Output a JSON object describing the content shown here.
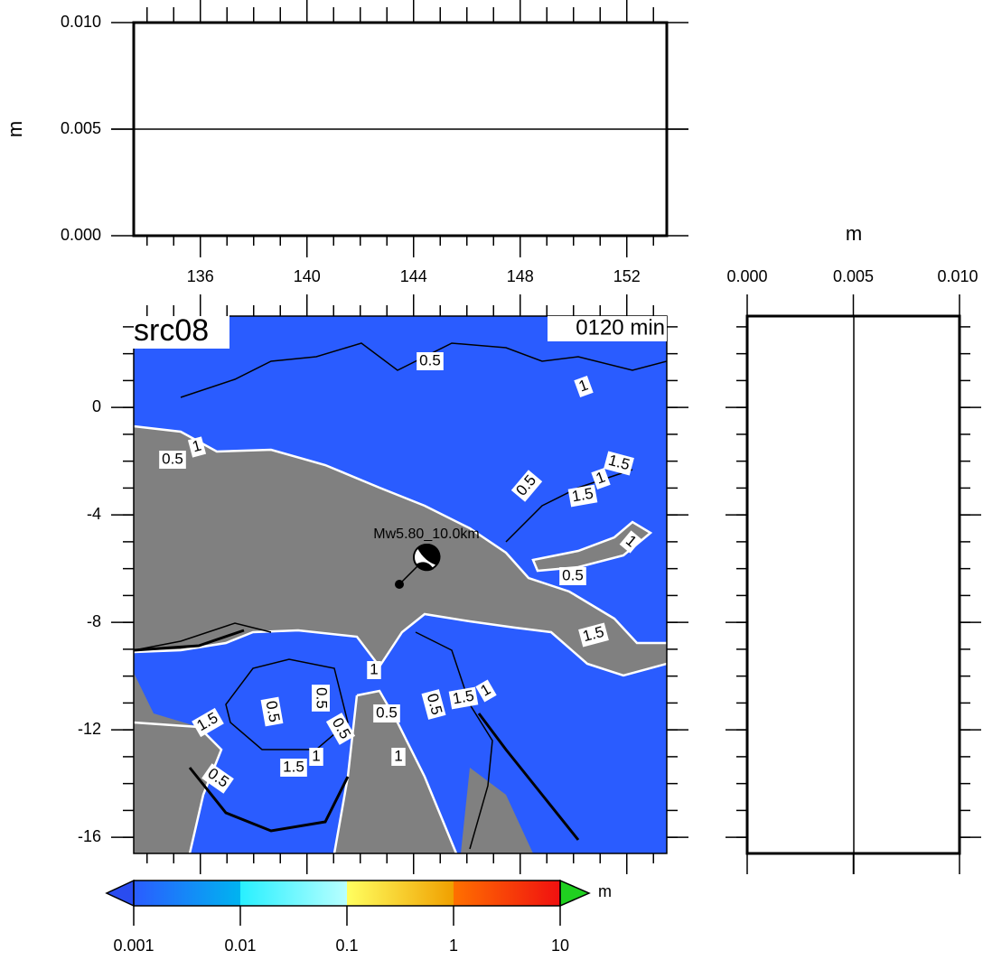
{
  "timeseries": {
    "ylabel": "m",
    "ylim": [
      0,
      0.01
    ],
    "yticks": [
      {
        "value": 0,
        "label": "0.000"
      },
      {
        "value": 0.005,
        "label": "0.005"
      },
      {
        "value": 0.01,
        "label": "0.010"
      }
    ],
    "xlim": [
      133.5,
      153.5
    ],
    "xticks": [
      136,
      140,
      144,
      148,
      152
    ]
  },
  "profile": {
    "xlabel": "m",
    "xlim": [
      0,
      0.01
    ],
    "xticks": [
      {
        "value": 0,
        "label": "0.000"
      },
      {
        "value": 0.005,
        "label": "0.005"
      },
      {
        "value": 0.01,
        "label": "0.010"
      }
    ]
  },
  "map": {
    "title": "src08",
    "time_label": "0120 min",
    "event_label": "Mw5.80_10.0km",
    "xlim": [
      133.5,
      153.5
    ],
    "ylim": [
      -16.6,
      3.4
    ],
    "yticks": [
      0,
      -4,
      -8,
      -12,
      -16
    ],
    "contour_labels": [
      "0.5",
      "1",
      "0.5",
      "1",
      "1.5",
      "1",
      "1.5",
      "0.5",
      "1",
      "0.5",
      "1.5",
      "1",
      "0.5",
      "0.5",
      "0.5",
      "0.5",
      "0.5",
      "1.5",
      "1",
      "1.5",
      "1",
      "1",
      "0.5",
      "1.5"
    ]
  },
  "colorbar": {
    "unit": "m",
    "scale": "log",
    "ticks": [
      {
        "value": 0.001,
        "label": "0.001"
      },
      {
        "value": 0.01,
        "label": "0.01"
      },
      {
        "value": 0.1,
        "label": "0.1"
      },
      1,
      10
    ]
  }
}
